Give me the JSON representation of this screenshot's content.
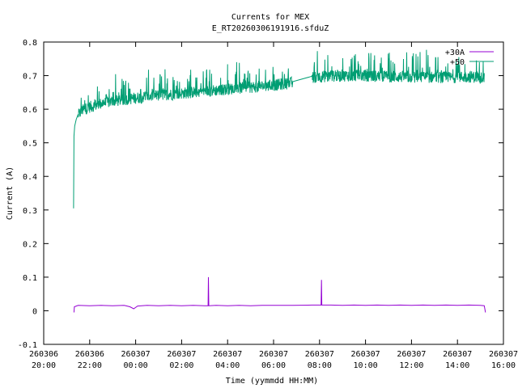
{
  "chart_data": {
    "type": "line",
    "title": "Currents for MEX",
    "subtitle": "E_RT20260306191916.sfduZ",
    "xlabel": "Time (yymmdd HH:MM)",
    "ylabel": "Current (A)",
    "xlim": [
      "2026-03-06 20:00",
      "2026-03-07 16:00"
    ],
    "ylim": [
      -0.1,
      0.8
    ],
    "y_ticks": [
      {
        "v": -0.1,
        "label": "-0.1"
      },
      {
        "v": 0,
        "label": "0"
      },
      {
        "v": 0.1,
        "label": "0.1"
      },
      {
        "v": 0.2,
        "label": "0.2"
      },
      {
        "v": 0.3,
        "label": "0.3"
      },
      {
        "v": 0.4,
        "label": "0.4"
      },
      {
        "v": 0.5,
        "label": "0.5"
      },
      {
        "v": 0.6,
        "label": "0.6"
      },
      {
        "v": 0.7,
        "label": "0.7"
      },
      {
        "v": 0.8,
        "label": "0.8"
      }
    ],
    "x_ticks": [
      {
        "t": "2026-03-06 20:00",
        "date": "260306",
        "time": "20:00"
      },
      {
        "t": "2026-03-06 22:00",
        "date": "260306",
        "time": "22:00"
      },
      {
        "t": "2026-03-07 00:00",
        "date": "260307",
        "time": "00:00"
      },
      {
        "t": "2026-03-07 02:00",
        "date": "260307",
        "time": "02:00"
      },
      {
        "t": "2026-03-07 04:00",
        "date": "260307",
        "time": "04:00"
      },
      {
        "t": "2026-03-07 06:00",
        "date": "260307",
        "time": "06:00"
      },
      {
        "t": "2026-03-07 08:00",
        "date": "260307",
        "time": "08:00"
      },
      {
        "t": "2026-03-07 10:00",
        "date": "260307",
        "time": "10:00"
      },
      {
        "t": "2026-03-07 12:00",
        "date": "260307",
        "time": "12:00"
      },
      {
        "t": "2026-03-07 14:00",
        "date": "260307",
        "time": "14:00"
      },
      {
        "t": "2026-03-07 16:00",
        "date": "260307",
        "time": "16:00"
      }
    ],
    "legend_position": "top-right",
    "grid": false,
    "series": [
      {
        "name": "+30A",
        "color": "#9400d3",
        "points": [
          [
            "2026-03-06 21:19",
            -0.005
          ],
          [
            "2026-03-06 21:20",
            0.012
          ],
          [
            "2026-03-06 21:30",
            0.016
          ],
          [
            "2026-03-06 22:00",
            0.015
          ],
          [
            "2026-03-06 22:30",
            0.016
          ],
          [
            "2026-03-06 23:00",
            0.015
          ],
          [
            "2026-03-06 23:30",
            0.016
          ],
          [
            "2026-03-06 23:45",
            0.012
          ],
          [
            "2026-03-06 23:55",
            0.006
          ],
          [
            "2026-03-07 00:05",
            0.014
          ],
          [
            "2026-03-07 00:30",
            0.016
          ],
          [
            "2026-03-07 01:00",
            0.015
          ],
          [
            "2026-03-07 01:30",
            0.016
          ],
          [
            "2026-03-07 02:00",
            0.015
          ],
          [
            "2026-03-07 02:30",
            0.016
          ],
          [
            "2026-03-07 03:00",
            0.015
          ],
          [
            "2026-03-07 03:09",
            0.015
          ],
          [
            "2026-03-07 03:10",
            0.1
          ],
          [
            "2026-03-07 03:11",
            0.015
          ],
          [
            "2026-03-07 03:30",
            0.016
          ],
          [
            "2026-03-07 04:00",
            0.015
          ],
          [
            "2026-03-07 04:30",
            0.016
          ],
          [
            "2026-03-07 05:00",
            0.015
          ],
          [
            "2026-03-07 05:30",
            0.016
          ],
          [
            "2026-03-07 06:00",
            0.016
          ],
          [
            "2026-03-07 06:30",
            0.016
          ],
          [
            "2026-03-07 06:50",
            0.016
          ],
          [
            "2026-03-07 07:40",
            0.017
          ],
          [
            "2026-03-07 08:04",
            0.017
          ],
          [
            "2026-03-07 08:05",
            0.092
          ],
          [
            "2026-03-07 08:06",
            0.017
          ],
          [
            "2026-03-07 08:30",
            0.017
          ],
          [
            "2026-03-07 09:00",
            0.016
          ],
          [
            "2026-03-07 09:30",
            0.017
          ],
          [
            "2026-03-07 10:00",
            0.016
          ],
          [
            "2026-03-07 10:30",
            0.017
          ],
          [
            "2026-03-07 11:00",
            0.016
          ],
          [
            "2026-03-07 11:30",
            0.017
          ],
          [
            "2026-03-07 12:00",
            0.016
          ],
          [
            "2026-03-07 12:30",
            0.017
          ],
          [
            "2026-03-07 13:00",
            0.016
          ],
          [
            "2026-03-07 13:30",
            0.017
          ],
          [
            "2026-03-07 14:00",
            0.016
          ],
          [
            "2026-03-07 14:30",
            0.017
          ],
          [
            "2026-03-07 15:00",
            0.016
          ],
          [
            "2026-03-07 15:10",
            0.015
          ],
          [
            "2026-03-07 15:12",
            0.002
          ],
          [
            "2026-03-07 15:13",
            -0.005
          ]
        ]
      },
      {
        "name": "+50",
        "color": "#009e73",
        "points": [
          [
            "2026-03-06 21:18",
            0.305
          ],
          [
            "2026-03-06 21:19",
            0.52
          ],
          [
            "2026-03-06 21:21",
            0.55
          ],
          [
            "2026-03-06 21:25",
            0.57
          ],
          [
            "2026-03-06 21:30",
            0.585
          ],
          [
            "2026-03-06 21:40",
            0.6
          ],
          [
            "2026-03-06 22:00",
            0.61
          ],
          [
            "2026-03-06 22:30",
            0.62
          ],
          [
            "2026-03-06 23:00",
            0.627
          ],
          [
            "2026-03-06 23:30",
            0.632
          ],
          [
            "2026-03-07 00:00",
            0.637
          ],
          [
            "2026-03-07 00:30",
            0.641
          ],
          [
            "2026-03-07 01:00",
            0.645
          ],
          [
            "2026-03-07 01:30",
            0.648
          ],
          [
            "2026-03-07 02:00",
            0.651
          ],
          [
            "2026-03-07 02:30",
            0.654
          ],
          [
            "2026-03-07 03:00",
            0.657
          ],
          [
            "2026-03-07 03:30",
            0.66
          ],
          [
            "2026-03-07 04:00",
            0.663
          ],
          [
            "2026-03-07 04:30",
            0.666
          ],
          [
            "2026-03-07 05:00",
            0.669
          ],
          [
            "2026-03-07 05:30",
            0.672
          ],
          [
            "2026-03-07 06:00",
            0.675
          ],
          [
            "2026-03-07 06:30",
            0.679
          ],
          [
            "2026-03-07 06:50",
            0.682
          ],
          [
            "2026-03-07 07:40",
            0.698
          ],
          [
            "2026-03-07 08:00",
            0.7
          ],
          [
            "2026-03-07 08:30",
            0.702
          ],
          [
            "2026-03-07 09:00",
            0.703
          ],
          [
            "2026-03-07 09:30",
            0.704
          ],
          [
            "2026-03-07 10:00",
            0.703
          ],
          [
            "2026-03-07 10:30",
            0.702
          ],
          [
            "2026-03-07 11:00",
            0.701
          ],
          [
            "2026-03-07 11:30",
            0.7
          ],
          [
            "2026-03-07 12:00",
            0.699
          ],
          [
            "2026-03-07 12:30",
            0.699
          ],
          [
            "2026-03-07 13:00",
            0.699
          ],
          [
            "2026-03-07 13:30",
            0.698
          ],
          [
            "2026-03-07 14:00",
            0.699
          ],
          [
            "2026-03-07 14:30",
            0.7
          ],
          [
            "2026-03-07 15:00",
            0.699
          ],
          [
            "2026-03-07 15:10",
            0.698
          ]
        ],
        "noise_amplitude": 0.035
      }
    ]
  }
}
